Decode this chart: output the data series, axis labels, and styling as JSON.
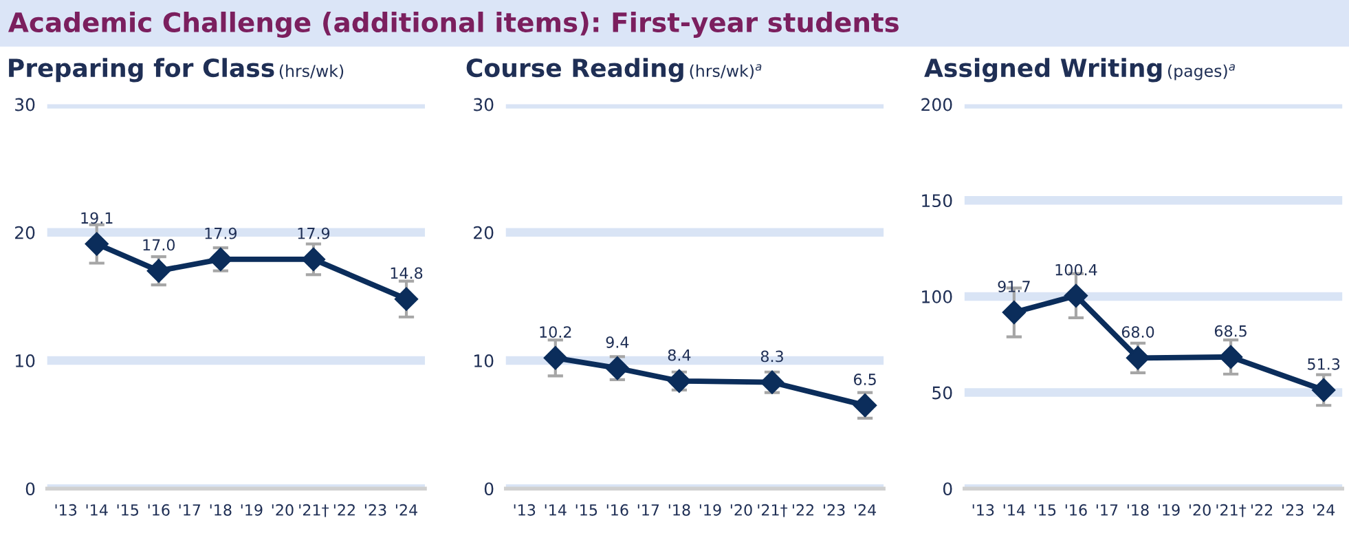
{
  "chart_data": [
    {
      "type": "line",
      "title": "Preparing for Class (hrs/wk)",
      "annotations": [
        "Academic Challenge (additional items): First-year students"
      ],
      "categories": [
        "'13",
        "'14",
        "'15",
        "'16",
        "'17",
        "'18",
        "'19",
        "'20",
        "'21†",
        "'22",
        "'23",
        "'24"
      ],
      "series": [
        {
          "color": "#0b2d5b",
          "values": [
            null,
            19.1,
            null,
            17.0,
            null,
            17.9,
            null,
            null,
            17.9,
            null,
            null,
            14.8
          ],
          "errors": [
            null,
            1.5,
            null,
            1.1,
            null,
            0.9,
            null,
            null,
            1.2,
            null,
            null,
            1.4
          ]
        }
      ],
      "ylim": [
        0,
        30
      ],
      "yticks": [
        0,
        10,
        20,
        30
      ],
      "grid": "y",
      "marker": "diamond",
      "line_style": "solid",
      "value_labels": [
        null,
        "19.1",
        null,
        "17.0",
        null,
        "17.9",
        null,
        null,
        "17.9",
        null,
        null,
        "14.8"
      ]
    },
    {
      "type": "line",
      "title": "Course Reading (hrs/wk)$^{a}$",
      "categories": [
        "'13",
        "'14",
        "'15",
        "'16",
        "'17",
        "'18",
        "'19",
        "'20",
        "'21†",
        "'22",
        "'23",
        "'24"
      ],
      "series": [
        {
          "color": "#0b2d5b",
          "values": [
            null,
            10.2,
            null,
            9.4,
            null,
            8.4,
            null,
            null,
            8.3,
            null,
            null,
            6.5
          ],
          "errors": [
            null,
            1.4,
            null,
            0.9,
            null,
            0.7,
            null,
            null,
            0.8,
            null,
            null,
            1.0
          ]
        }
      ],
      "ylim": [
        0,
        30
      ],
      "yticks": [
        0,
        10,
        20,
        30
      ],
      "grid": "y",
      "marker": "diamond",
      "line_style": "solid",
      "value_labels": [
        null,
        "10.2",
        null,
        "9.4",
        null,
        "8.4",
        null,
        null,
        "8.3",
        null,
        null,
        "6.5"
      ]
    },
    {
      "type": "line",
      "title": "Assigned Writing (pages)$^{a}$",
      "categories": [
        "'13",
        "'14",
        "'15",
        "'16",
        "'17",
        "'18",
        "'19",
        "'20",
        "'21†",
        "'22",
        "'23",
        "'24"
      ],
      "series": [
        {
          "color": "#0b2d5b",
          "values": [
            null,
            91.7,
            null,
            100.4,
            null,
            68.0,
            null,
            null,
            68.5,
            null,
            null,
            51.3
          ],
          "errors": [
            null,
            12.7,
            null,
            11.5,
            null,
            7.7,
            null,
            null,
            8.9,
            null,
            null,
            8.0
          ]
        }
      ],
      "ylim": [
        0,
        200
      ],
      "yticks": [
        0,
        50,
        100,
        150,
        200
      ],
      "grid": "y",
      "marker": "diamond",
      "line_style": "solid",
      "value_labels": [
        null,
        "91.7",
        null,
        "100.4",
        null,
        "68.0",
        null,
        null,
        "68.5",
        null,
        null,
        "51.3"
      ]
    }
  ]
}
